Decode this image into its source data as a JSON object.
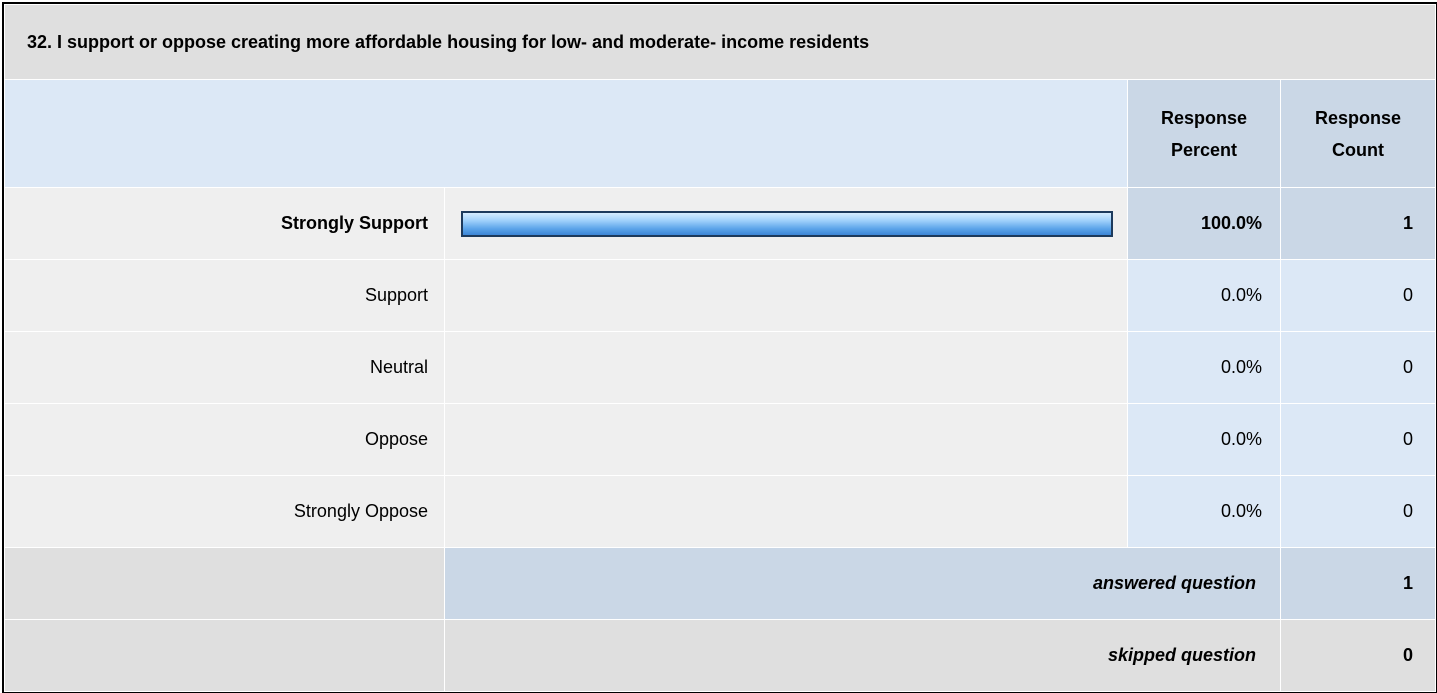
{
  "question": {
    "title": "32. I support or oppose creating more affordable housing for low- and moderate- income residents"
  },
  "columns": {
    "percent_line1": "Response",
    "percent_line2": "Percent",
    "count_line1": "Response",
    "count_line2": "Count"
  },
  "chart_data": {
    "type": "bar",
    "categories": [
      "Strongly Support",
      "Support",
      "Neutral",
      "Oppose",
      "Strongly Oppose"
    ],
    "values": [
      100.0,
      0.0,
      0.0,
      0.0,
      0.0
    ],
    "percent_labels": [
      "100.0%",
      "0.0%",
      "0.0%",
      "0.0%",
      "0.0%"
    ],
    "counts": [
      "1",
      "0",
      "0",
      "0",
      "0"
    ],
    "ylim": [
      0,
      100
    ],
    "bar_color": "#5ea6ea"
  },
  "summary": {
    "answered_label": "answered question",
    "answered_value": "1",
    "skipped_label": "skipped question",
    "skipped_value": "0"
  },
  "colors": {
    "header_blue": "#dce8f6",
    "header_dark_blue": "#cad7e6",
    "row_gray": "#efefef",
    "summary_gray": "#dfdfdf"
  }
}
